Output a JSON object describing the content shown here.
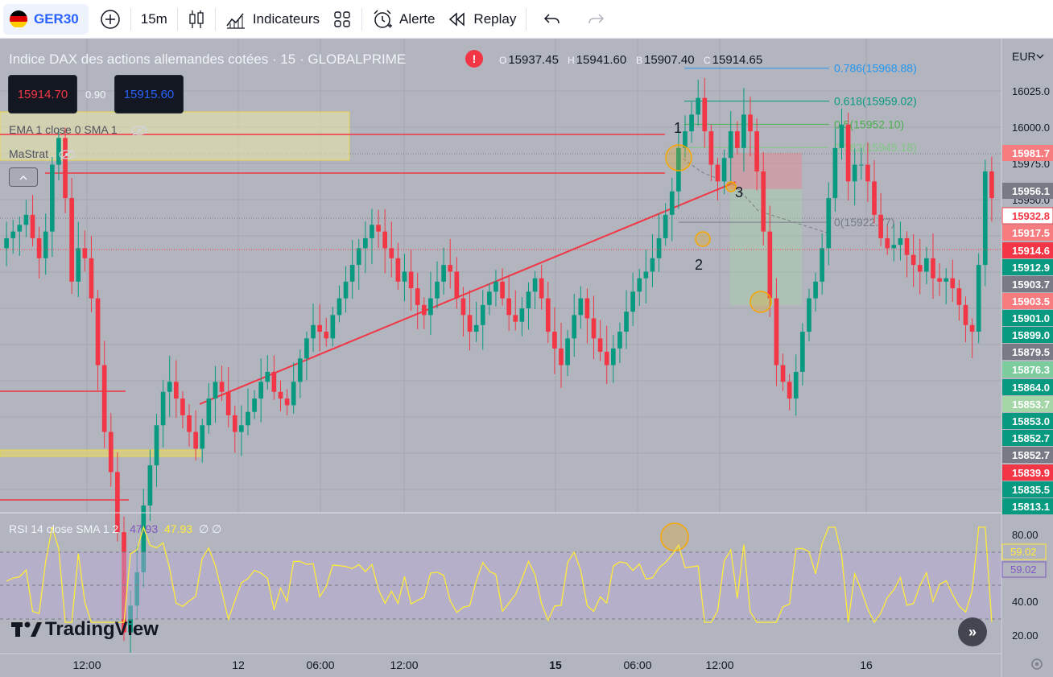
{
  "toolbar": {
    "symbol": "GER30",
    "interval": "15m",
    "indicators_label": "Indicateurs",
    "alert_label": "Alerte",
    "replay_label": "Replay"
  },
  "legend": {
    "title": "Indice DAX des actions allemandes cotées · 15 · GLOBALPRIME",
    "ohlc": [
      {
        "key": "O",
        "value": "15937.45"
      },
      {
        "key": "H",
        "value": "15941.60"
      },
      {
        "key": "B",
        "value": "15907.40"
      },
      {
        "key": "C",
        "value": "15914.65"
      }
    ],
    "sell_price": "15914.70",
    "spread": "0.90",
    "buy_price": "15915.60",
    "indicator_1": "EMA 1 close 0 SMA 1",
    "indicator_2": "MaStrat",
    "alert_mark": "!"
  },
  "price_axis": {
    "currency": "EUR",
    "ticks": [
      "16025.0",
      "16000.0",
      "15975.0",
      "15950.0"
    ],
    "labels": [
      {
        "text": "15981.7",
        "bg": "#f77c80",
        "y": 15981.7
      },
      {
        "text": "15956.1",
        "bg": "#787b86",
        "y": 15956.1
      },
      {
        "text": "15932.8",
        "bg": "#ffffff",
        "fg": "#f23645",
        "y": 15932.8
      },
      {
        "text": "15917.5",
        "bg": "#f77c80",
        "y": 15917.5
      },
      {
        "text": "15914.6",
        "bg": "#f23645",
        "y": 15914.6
      },
      {
        "text": "15912.9",
        "bg": "#089981",
        "y": 15912.9
      },
      {
        "text": "15903.7",
        "bg": "#787b86",
        "y": 15903.7
      },
      {
        "text": "15903.5",
        "bg": "#f77c80",
        "y": 15903.5
      },
      {
        "text": "15901.0",
        "bg": "#089981",
        "y": 15901.0
      },
      {
        "text": "15899.0",
        "bg": "#089981",
        "y": 15899.0
      },
      {
        "text": "15879.5",
        "bg": "#787b86",
        "y": 15879.5
      },
      {
        "text": "15876.3",
        "bg": "#7ccc9e",
        "y": 15876.3
      },
      {
        "text": "15864.0",
        "bg": "#089981",
        "y": 15864.0
      },
      {
        "text": "15853.7",
        "bg": "#a5d6a7",
        "y": 15853.7
      },
      {
        "text": "15853.0",
        "bg": "#089981",
        "y": 15853.0
      },
      {
        "text": "15852.7",
        "bg": "#089981",
        "y": 15852.7
      },
      {
        "text": "15852.7",
        "bg": "#787b86",
        "y": 15852.7
      },
      {
        "text": "15839.9",
        "bg": "#f23645",
        "y": 15839.9
      },
      {
        "text": "15835.5",
        "bg": "#089981",
        "y": 15835.5
      },
      {
        "text": "15813.1",
        "bg": "#089981",
        "y": 15813.1
      }
    ]
  },
  "fib": {
    "levels": [
      {
        "label": "0.786(15968.88)",
        "color": "#2196f3",
        "y": 15968.88
      },
      {
        "label": "0.618(15959.02)",
        "color": "#089981",
        "y": 15959.02
      },
      {
        "label": "0.5(15952.10)",
        "color": "#4caf50",
        "y": 15952.1
      },
      {
        "label": "0.382(15945.18)",
        "color": "#81c784",
        "y": 15945.18
      },
      {
        "label": "0(15922.77)",
        "color": "#787b86",
        "y": 15922.77
      }
    ]
  },
  "annotations": {
    "label_1": "1",
    "label_2": "2",
    "label_3": "3"
  },
  "time_axis": {
    "ticks": [
      {
        "label": "12:00",
        "bold": false
      },
      {
        "label": "12",
        "bold": false
      },
      {
        "label": "06:00",
        "bold": false
      },
      {
        "label": "12:00",
        "bold": false
      },
      {
        "label": "15",
        "bold": true
      },
      {
        "label": "06:00",
        "bold": false
      },
      {
        "label": "12:00",
        "bold": false
      },
      {
        "label": "16",
        "bold": false
      }
    ]
  },
  "rsi": {
    "legend": "RSI 14 close SMA 1 2",
    "value_1": "47.93",
    "value_2": "47.93",
    "extra": "∅ ∅",
    "ticks": [
      "80.00",
      "40.00",
      "20.00"
    ],
    "label_yellow": "59.02",
    "label_purple": "59.02"
  },
  "logo_text": "TradingView",
  "colors": {
    "background": "#b2b5be",
    "up_candle": "#089981",
    "down_candle": "#f23645",
    "rsi_line": "#ffeb3b",
    "rsi_band": "#b7a8d9"
  },
  "chart_data": {
    "type": "candlestick",
    "title": "Indice DAX des actions allemandes cotées · 15 · GLOBALPRIME",
    "ylim": [
      15800,
      16035
    ],
    "close_path": [
      15915,
      15918,
      15920,
      15922,
      15925,
      15918,
      15912,
      15920,
      15940,
      15948,
      15930,
      15905,
      15915,
      15912,
      15900,
      15880,
      15860,
      15848,
      15830,
      15800,
      15808,
      15818,
      15838,
      15850,
      15862,
      15872,
      15875,
      15870,
      15865,
      15860,
      15855,
      15862,
      15870,
      15875,
      15872,
      15865,
      15860,
      15862,
      15866,
      15870,
      15875,
      15878,
      15872,
      15870,
      15868,
      15875,
      15882,
      15888,
      15892,
      15890,
      15888,
      15895,
      15900,
      15905,
      15910,
      15915,
      15918,
      15922,
      15920,
      15915,
      15912,
      15905,
      15908,
      15903,
      15898,
      15895,
      15900,
      15905,
      15910,
      15908,
      15900,
      15895,
      15890,
      15892,
      15898,
      15902,
      15905,
      15900,
      15895,
      15893,
      15897,
      15902,
      15906,
      15900,
      15890,
      15885,
      15880,
      15888,
      15895,
      15900,
      15894,
      15888,
      15884,
      15880,
      15885,
      15890,
      15896,
      15902,
      15906,
      15908,
      15912,
      15918,
      15925,
      15932,
      15945,
      15950,
      15955,
      15960,
      15950,
      15940,
      15935,
      15942,
      15950,
      15945,
      15955,
      15950,
      15938,
      15920,
      15900,
      15880,
      15875,
      15870,
      15878,
      15890,
      15900,
      15905,
      15915,
      15930,
      15945,
      15952,
      15935,
      15940,
      15940,
      15935,
      15925,
      15918,
      15915,
      15916,
      15918,
      15913,
      15910,
      15908,
      15912,
      15906,
      15905,
      15906,
      15903,
      15898,
      15892,
      15890,
      15910,
      15938,
      15930
    ]
  }
}
